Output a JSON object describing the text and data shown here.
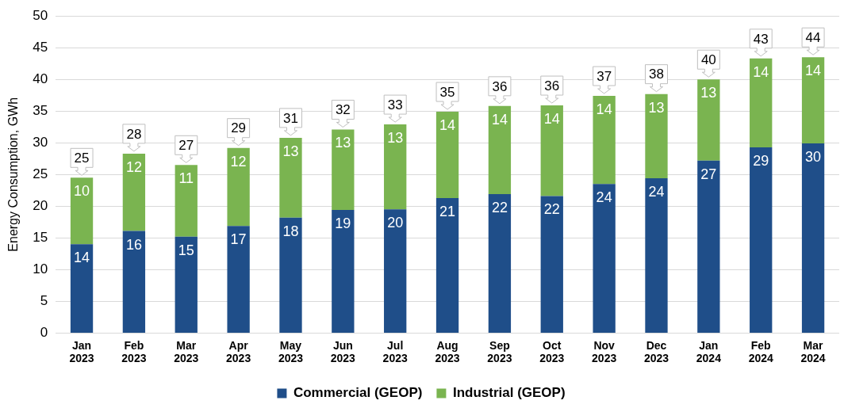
{
  "chart_data": {
    "type": "bar",
    "ylabel": "Energy Consumption, GWh",
    "stacked": true,
    "legend": "bottom",
    "grid": "y",
    "categories": [
      "Jan\n2023",
      "Feb\n2023",
      "Mar\n2023",
      "Apr\n2023",
      "May\n2023",
      "Jun\n2023",
      "Jul\n2023",
      "Aug\n2023",
      "Sep\n2023",
      "Oct\n2023",
      "Nov\n2023",
      "Dec\n2023",
      "Jan\n2024",
      "Feb\n2024",
      "Mar\n2024"
    ],
    "ylim": [
      0,
      50
    ],
    "yticks": [
      0,
      5,
      10,
      15,
      20,
      25,
      30,
      35,
      40,
      45,
      50
    ],
    "series": [
      {
        "name": "Commercial (GEOP)",
        "color": "#1f4e89",
        "values": [
          14.0,
          16.1,
          15.2,
          16.9,
          18.2,
          19.4,
          19.5,
          21.3,
          21.9,
          21.6,
          23.5,
          24.4,
          27.2,
          29.3,
          29.9
        ],
        "value_labels": [
          "14",
          "16",
          "15",
          "17",
          "18",
          "19",
          "20",
          "21",
          "22",
          "22",
          "24",
          "24",
          "27",
          "29",
          "30"
        ]
      },
      {
        "name": "Industrial (GEOP)",
        "color": "#7ab450",
        "values": [
          10.5,
          12.2,
          11.3,
          12.3,
          12.6,
          12.7,
          13.4,
          13.6,
          13.9,
          14.3,
          13.9,
          13.3,
          12.8,
          14.0,
          13.6
        ],
        "value_labels": [
          "10",
          "12",
          "11",
          "12",
          "13",
          "13",
          "13",
          "14",
          "14",
          "14",
          "14",
          "13",
          "13",
          "14",
          "14"
        ]
      }
    ],
    "totals": [
      "25",
      "28",
      "27",
      "29",
      "31",
      "32",
      "33",
      "35",
      "36",
      "36",
      "37",
      "38",
      "40",
      "43",
      "44"
    ]
  }
}
